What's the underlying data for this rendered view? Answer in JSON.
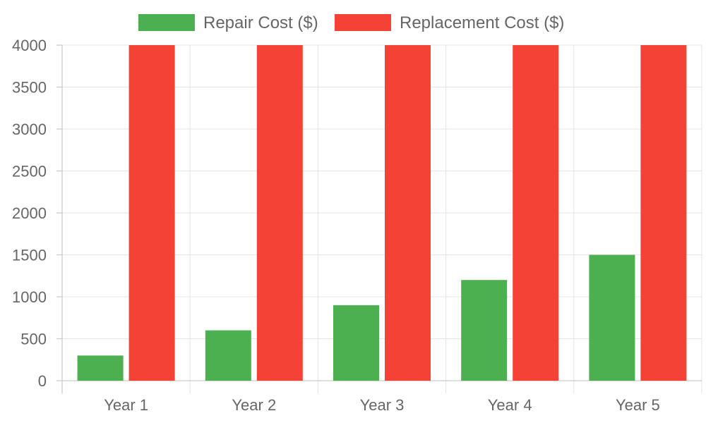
{
  "chart_data": {
    "type": "bar",
    "categories": [
      "Year 1",
      "Year 2",
      "Year 3",
      "Year 4",
      "Year 5"
    ],
    "series": [
      {
        "name": "Repair Cost ($)",
        "color": "#4caf50",
        "values": [
          300,
          600,
          900,
          1200,
          1500
        ]
      },
      {
        "name": "Replacement Cost ($)",
        "color": "#f44336",
        "values": [
          4000,
          4000,
          4000,
          4000,
          4000
        ]
      }
    ],
    "ylim": [
      0,
      4000
    ],
    "yticks": [
      0,
      500,
      1000,
      1500,
      2000,
      2500,
      3000,
      3500,
      4000
    ],
    "grid": true,
    "legend_position": "top-center"
  }
}
